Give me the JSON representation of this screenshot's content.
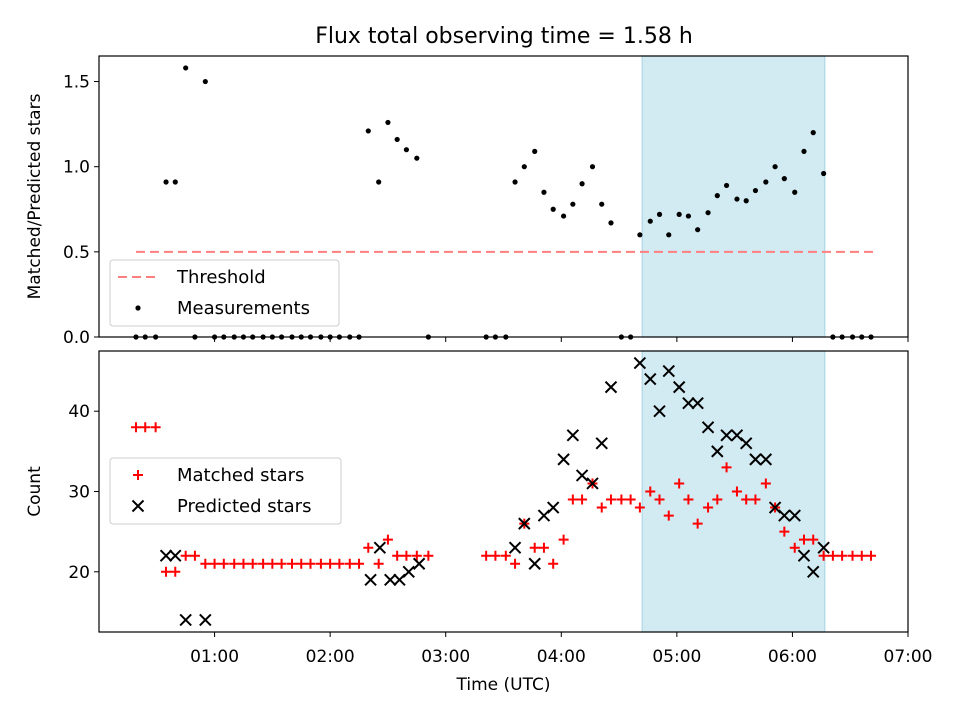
{
  "title": "Flux total observing time = 1.58 h",
  "colors": {
    "threshold": "#ff7f7f",
    "measurement": "#000000",
    "matched": "#ff0000",
    "predicted": "#000000",
    "span": "#add8e6"
  },
  "chart_data": [
    {
      "type": "scatter",
      "ylabel": "Matched/Predicted stars",
      "xlim": [
        0.0,
        7.0
      ],
      "ylim": [
        0.0,
        1.65
      ],
      "y_ticks": [
        0.0,
        0.5,
        1.0,
        1.5
      ],
      "y_tick_labels": [
        "0.0",
        "0.5",
        "1.0",
        "1.5"
      ],
      "shaded_span": [
        4.7,
        6.28
      ],
      "legend": {
        "position": "lower-left",
        "entries": [
          "Threshold",
          "Measurements"
        ]
      },
      "threshold": {
        "name": "Threshold",
        "y": 0.5,
        "x_range": [
          0.32,
          6.7
        ]
      },
      "series": [
        {
          "name": "Measurements",
          "marker": "dot",
          "x": [
            0.32,
            0.4,
            0.49,
            0.58,
            0.66,
            0.75,
            0.83,
            0.92,
            1.0,
            1.08,
            1.17,
            1.25,
            1.33,
            1.42,
            1.5,
            1.58,
            1.67,
            1.75,
            1.83,
            1.92,
            2.0,
            2.08,
            2.17,
            2.25,
            2.33,
            2.42,
            2.5,
            2.58,
            2.66,
            2.75,
            2.85,
            3.35,
            3.43,
            3.52,
            3.6,
            3.68,
            3.77,
            3.85,
            3.93,
            4.02,
            4.1,
            4.18,
            4.27,
            4.35,
            4.43,
            4.52,
            4.6,
            4.68,
            4.77,
            4.85,
            4.93,
            5.02,
            5.1,
            5.18,
            5.27,
            5.35,
            5.43,
            5.52,
            5.6,
            5.68,
            5.77,
            5.85,
            5.93,
            6.02,
            6.1,
            6.18,
            6.27,
            6.35,
            6.43,
            6.52,
            6.6,
            6.68
          ],
          "y": [
            0.0,
            0.0,
            0.0,
            0.91,
            0.91,
            1.58,
            0.0,
            1.5,
            0.0,
            0.0,
            0.0,
            0.0,
            0.0,
            0.0,
            0.0,
            0.0,
            0.0,
            0.0,
            0.0,
            0.0,
            0.0,
            0.0,
            0.0,
            0.0,
            1.21,
            0.91,
            1.26,
            1.16,
            1.1,
            1.05,
            0.0,
            0.0,
            0.0,
            0.0,
            0.91,
            1.0,
            1.09,
            0.85,
            0.75,
            0.71,
            0.78,
            0.9,
            1.0,
            0.78,
            0.67,
            0.0,
            0.0,
            0.6,
            0.68,
            0.72,
            0.6,
            0.72,
            0.71,
            0.63,
            0.73,
            0.83,
            0.89,
            0.81,
            0.8,
            0.86,
            0.91,
            1.0,
            0.93,
            0.85,
            1.09,
            1.2,
            0.96,
            0.0,
            0.0,
            0.0,
            0.0,
            0.0
          ]
        }
      ]
    },
    {
      "type": "scatter",
      "xlabel": "Time (UTC)",
      "ylabel": "Count",
      "xlim": [
        0.0,
        7.0
      ],
      "ylim": [
        12.5,
        47.5
      ],
      "x_ticks": [
        1,
        2,
        3,
        4,
        5,
        6,
        7
      ],
      "x_tick_labels": [
        "01:00",
        "02:00",
        "03:00",
        "04:00",
        "05:00",
        "06:00",
        "07:00"
      ],
      "y_ticks": [
        20,
        30,
        40
      ],
      "y_tick_labels": [
        "20",
        "30",
        "40"
      ],
      "shaded_span": [
        4.7,
        6.28
      ],
      "legend": {
        "position": "center-left",
        "entries": [
          "Matched stars",
          "Predicted stars"
        ]
      },
      "series": [
        {
          "name": "Matched stars",
          "marker": "plus",
          "x": [
            0.32,
            0.4,
            0.49,
            0.58,
            0.66,
            0.75,
            0.83,
            0.92,
            1.0,
            1.08,
            1.17,
            1.25,
            1.33,
            1.42,
            1.5,
            1.58,
            1.67,
            1.75,
            1.83,
            1.92,
            2.0,
            2.08,
            2.17,
            2.25,
            2.33,
            2.42,
            2.5,
            2.58,
            2.66,
            2.75,
            2.85,
            3.35,
            3.43,
            3.52,
            3.6,
            3.68,
            3.77,
            3.85,
            3.93,
            4.02,
            4.1,
            4.18,
            4.27,
            4.35,
            4.43,
            4.52,
            4.6,
            4.68,
            4.77,
            4.85,
            4.93,
            5.02,
            5.1,
            5.18,
            5.27,
            5.35,
            5.43,
            5.52,
            5.6,
            5.68,
            5.77,
            5.85,
            5.93,
            6.02,
            6.1,
            6.18,
            6.27,
            6.35,
            6.43,
            6.52,
            6.6,
            6.68
          ],
          "y": [
            38,
            38,
            38,
            20,
            20,
            22,
            22,
            21,
            21,
            21,
            21,
            21,
            21,
            21,
            21,
            21,
            21,
            21,
            21,
            21,
            21,
            21,
            21,
            21,
            23,
            21,
            24,
            22,
            22,
            22,
            22,
            22,
            22,
            22,
            21,
            26,
            23,
            23,
            21,
            24,
            29,
            29,
            31,
            28,
            29,
            29,
            29,
            28,
            30,
            29,
            27,
            31,
            29,
            26,
            28,
            29,
            33,
            30,
            29,
            29,
            31,
            28,
            25,
            23,
            24,
            24,
            22,
            22,
            22,
            22,
            22,
            22
          ]
        },
        {
          "name": "Predicted stars",
          "marker": "x",
          "x": [
            0.58,
            0.66,
            0.75,
            0.92,
            2.35,
            2.43,
            2.52,
            2.6,
            2.68,
            2.77,
            3.6,
            3.68,
            3.77,
            3.85,
            3.93,
            4.02,
            4.1,
            4.18,
            4.27,
            4.35,
            4.43,
            4.68,
            4.77,
            4.85,
            4.93,
            5.02,
            5.1,
            5.18,
            5.27,
            5.35,
            5.43,
            5.52,
            5.6,
            5.68,
            5.77,
            5.85,
            5.93,
            6.02,
            6.1,
            6.18,
            6.27
          ],
          "y": [
            22,
            22,
            14,
            14,
            19,
            23,
            19,
            19,
            20,
            21,
            23,
            26,
            21,
            27,
            28,
            34,
            37,
            32,
            31,
            36,
            43,
            46,
            44,
            40,
            45,
            43,
            41,
            41,
            38,
            35,
            37,
            37,
            36,
            34,
            34,
            28,
            27,
            27,
            22,
            20,
            23
          ]
        }
      ]
    }
  ]
}
